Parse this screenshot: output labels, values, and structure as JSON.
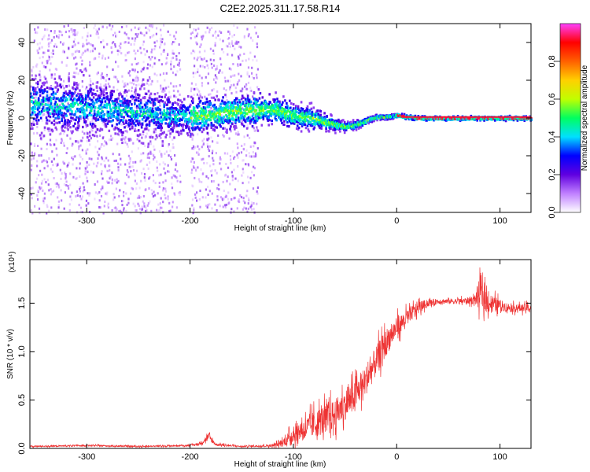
{
  "title": "C2E2.2025.311.17.58.R14",
  "chart_data": [
    {
      "type": "heatmap",
      "xlabel": "Height of straight line (km)",
      "ylabel": "Frequency (Hz)",
      "xlim": [
        -355,
        130
      ],
      "ylim": [
        -50,
        50
      ],
      "x_ticks": [
        -300,
        -200,
        -100,
        0,
        100
      ],
      "y_ticks": [
        -40,
        -20,
        0,
        20,
        40
      ],
      "colorbar": {
        "label": "Normalized spectral amplitude",
        "range": [
          0,
          1
        ],
        "ticks": [
          0.0,
          0.2,
          0.4,
          0.6,
          0.8
        ],
        "tick_labels": [
          "0.0",
          "0.2",
          "0.4",
          "0.6",
          "0.8"
        ],
        "colors": [
          "#ffffff",
          "#c080ff",
          "#6000e0",
          "#0000ff",
          "#00e0ff",
          "#00ff60",
          "#c0ff00",
          "#ffd000",
          "#ff6000",
          "#ff0000",
          "#ff40ff"
        ]
      },
      "ridge": {
        "x": [
          -355,
          -320,
          -280,
          -240,
          -200,
          -170,
          -140,
          -120,
          -100,
          -80,
          -60,
          -50,
          -40,
          -30,
          -20,
          -10,
          0,
          10,
          20,
          40,
          60,
          80,
          100,
          130
        ],
        "y": [
          8,
          7,
          5,
          3,
          1,
          3,
          5,
          5,
          2,
          0,
          -3,
          -4,
          -3,
          -1,
          1,
          1,
          2,
          1,
          0.5,
          0.5,
          0.5,
          0.5,
          0.5,
          0.5
        ],
        "spread": [
          14,
          14,
          13,
          12,
          9,
          8,
          8,
          7,
          6,
          5,
          3,
          2,
          2,
          1.5,
          1.2,
          1.2,
          1,
          1,
          1,
          1,
          1,
          1,
          1,
          1
        ]
      },
      "dense_noise_x_ranges": [
        [
          -355,
          -210
        ],
        [
          -200,
          -135
        ]
      ]
    },
    {
      "type": "line",
      "xlabel": "Height of straight line (km)",
      "ylabel": "SNR (10 * v/v)",
      "y_multiplier": "(x10⁴)",
      "xlim": [
        -355,
        130
      ],
      "ylim": [
        0,
        1.95
      ],
      "x_ticks": [
        -300,
        -200,
        -100,
        0,
        100
      ],
      "y_ticks": [
        0.0,
        0.5,
        1.0,
        1.5
      ],
      "y_tick_labels": [
        "0.0",
        "0.5",
        "1.0",
        "1.5"
      ],
      "color": "#ee3333",
      "series": [
        {
          "x": [
            -355,
            -300,
            -250,
            -200,
            -190,
            -182,
            -175,
            -150,
            -120,
            -110,
            -100,
            -90,
            -80,
            -70,
            -60,
            -50,
            -40,
            -30,
            -20,
            -10,
            0,
            10,
            20,
            30,
            40,
            60,
            75,
            80,
            90,
            100,
            110,
            130
          ],
          "y": [
            0.02,
            0.03,
            0.02,
            0.03,
            0.05,
            0.12,
            0.04,
            0.02,
            0.03,
            0.06,
            0.15,
            0.2,
            0.25,
            0.3,
            0.35,
            0.45,
            0.55,
            0.7,
            0.9,
            1.1,
            1.25,
            1.35,
            1.45,
            1.5,
            1.52,
            1.52,
            1.53,
            1.6,
            1.5,
            1.48,
            1.45,
            1.45
          ],
          "noise": [
            0.01,
            0.01,
            0.01,
            0.01,
            0.02,
            0.06,
            0.02,
            0.01,
            0.02,
            0.06,
            0.12,
            0.15,
            0.2,
            0.22,
            0.22,
            0.22,
            0.22,
            0.22,
            0.22,
            0.2,
            0.15,
            0.12,
            0.1,
            0.05,
            0.04,
            0.04,
            0.06,
            0.22,
            0.15,
            0.08,
            0.06,
            0.06
          ]
        }
      ]
    }
  ]
}
